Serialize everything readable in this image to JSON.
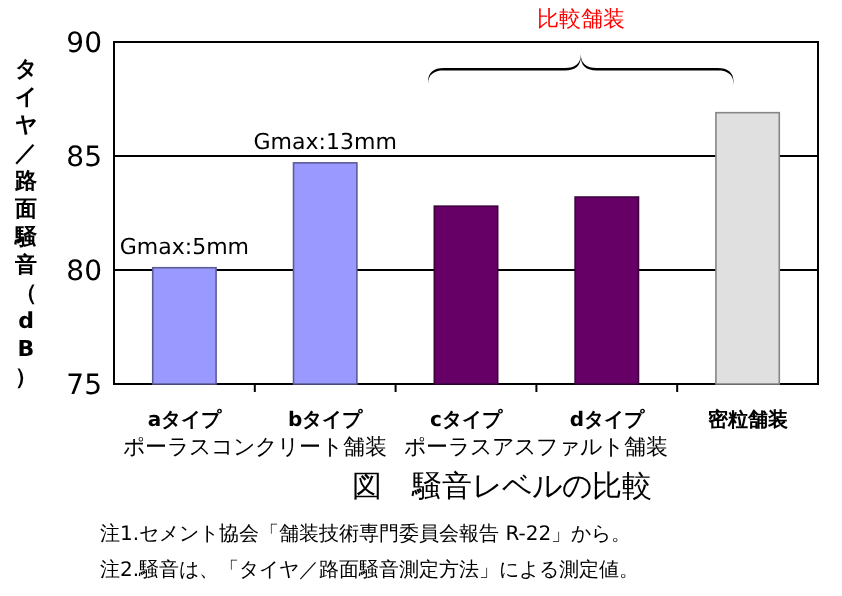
{
  "chart_data": {
    "type": "bar",
    "title": "図　騒音レベルの比較",
    "ylabel": "タイヤ／路面騒音（dB）",
    "categories": [
      "aタイプ",
      "bタイプ",
      "cタイプ",
      "dタイプ",
      "密粒舗装"
    ],
    "values": [
      80.1,
      84.7,
      82.8,
      83.2,
      86.9
    ],
    "colors": [
      "#9999ff",
      "#9999ff",
      "#660066",
      "#660066",
      "#e0e0e0"
    ],
    "ylim": [
      75,
      90
    ],
    "yticks": [
      75,
      80,
      85,
      90
    ],
    "grid": "y",
    "annotations": [
      {
        "text": "Gmax:5mm",
        "x": "aタイプ",
        "y": 80.1
      },
      {
        "text": "Gmax:13mm",
        "x": "bタイプ",
        "y": 84.7
      },
      "比較舗装",
      "ポーラスコンクリート舗装",
      "ポーラスアスファルト舗装",
      "注1.セメント協会「舗装技術専門委員会報告 R-22」から。",
      "注2.騒音は、「タイヤ／路面騒音測定方法」による測定値。"
    ]
  }
}
